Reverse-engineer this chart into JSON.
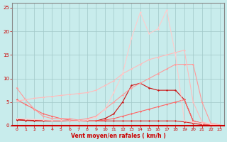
{
  "background_color": "#c8ecec",
  "grid_color": "#a0c8c8",
  "xlim": [
    -0.5,
    23.5
  ],
  "ylim": [
    0,
    26
  ],
  "yticks": [
    0,
    5,
    10,
    15,
    20,
    25
  ],
  "xticks": [
    0,
    1,
    2,
    3,
    4,
    5,
    6,
    7,
    8,
    9,
    10,
    11,
    12,
    13,
    14,
    15,
    16,
    17,
    18,
    19,
    20,
    21,
    22,
    23
  ],
  "xlabel": "Vent moyen/en rafales ( km/h )",
  "xlabel_color": "#cc0000",
  "tick_color": "#cc0000",
  "series": [
    {
      "x": [
        0,
        1,
        2,
        3,
        4,
        5,
        6,
        7,
        8,
        9,
        10,
        11,
        12,
        13,
        14,
        15,
        16,
        17,
        18,
        19,
        20,
        21,
        22,
        23
      ],
      "y": [
        1.3,
        1.2,
        1.1,
        1.1,
        1.0,
        1.0,
        1.0,
        1.0,
        1.0,
        1.0,
        1.0,
        1.0,
        1.0,
        1.0,
        1.0,
        1.0,
        1.0,
        1.0,
        1.0,
        0.8,
        0.5,
        0.2,
        0.1,
        0.1
      ],
      "color": "#dd2222",
      "marker": "D",
      "markersize": 1.5,
      "linewidth": 0.8
    },
    {
      "x": [
        0,
        1,
        2,
        3,
        4,
        5,
        6,
        7,
        8,
        9,
        10,
        11,
        12,
        13,
        14,
        15,
        16,
        17,
        18,
        19,
        20,
        21,
        22,
        23
      ],
      "y": [
        1.2,
        1.1,
        1.0,
        1.0,
        1.0,
        1.0,
        1.0,
        1.0,
        1.0,
        1.0,
        1.5,
        2.5,
        5.0,
        8.5,
        9.0,
        8.0,
        7.5,
        7.5,
        7.5,
        5.5,
        1.0,
        0.5,
        0.2,
        0.1
      ],
      "color": "#cc1111",
      "marker": "D",
      "markersize": 1.5,
      "linewidth": 0.8
    },
    {
      "x": [
        0,
        1,
        2,
        3,
        4,
        5,
        6,
        7,
        8,
        9,
        10,
        11,
        12,
        13,
        14,
        15,
        16,
        17,
        18,
        19,
        20,
        21,
        22,
        23
      ],
      "y": [
        5.5,
        4.5,
        3.5,
        2.5,
        2.0,
        1.5,
        1.2,
        1.0,
        1.0,
        1.0,
        1.2,
        1.5,
        2.0,
        2.5,
        3.0,
        3.5,
        4.0,
        4.5,
        5.0,
        5.5,
        1.0,
        0.5,
        0.2,
        0.1
      ],
      "color": "#ff6666",
      "marker": "D",
      "markersize": 1.5,
      "linewidth": 0.8
    },
    {
      "x": [
        0,
        1,
        2,
        3,
        4,
        5,
        6,
        7,
        8,
        9,
        10,
        11,
        12,
        13,
        14,
        15,
        16,
        17,
        18,
        19,
        20,
        21,
        22,
        23
      ],
      "y": [
        8.0,
        5.5,
        3.5,
        2.0,
        1.5,
        1.5,
        1.5,
        1.2,
        1.5,
        2.0,
        3.5,
        5.0,
        6.5,
        8.0,
        9.0,
        10.0,
        11.0,
        12.0,
        13.0,
        13.0,
        13.0,
        5.0,
        0.5,
        0.2
      ],
      "color": "#ff9999",
      "marker": "D",
      "markersize": 1.5,
      "linewidth": 0.8
    },
    {
      "x": [
        0,
        1,
        2,
        3,
        4,
        5,
        6,
        7,
        8,
        9,
        10,
        11,
        12,
        13,
        14,
        15,
        16,
        17,
        18,
        19,
        20,
        21,
        22,
        23
      ],
      "y": [
        5.2,
        5.5,
        5.8,
        6.0,
        6.2,
        6.4,
        6.6,
        6.8,
        7.0,
        7.5,
        8.5,
        9.5,
        11.0,
        12.0,
        13.0,
        14.0,
        14.5,
        15.0,
        15.5,
        16.0,
        5.0,
        0.8,
        0.3,
        0.1
      ],
      "color": "#ffbbbb",
      "marker": "D",
      "markersize": 1.5,
      "linewidth": 0.8
    },
    {
      "x": [
        0,
        1,
        2,
        3,
        4,
        5,
        6,
        7,
        8,
        9,
        10,
        11,
        12,
        13,
        14,
        15,
        16,
        17,
        18,
        19,
        20,
        21,
        22,
        23
      ],
      "y": [
        1.5,
        1.4,
        1.3,
        1.2,
        1.1,
        1.1,
        1.0,
        1.0,
        1.2,
        1.8,
        3.5,
        7.0,
        11.0,
        18.5,
        24.0,
        19.5,
        20.5,
        24.5,
        15.0,
        1.0,
        0.8,
        0.5,
        0.3,
        0.1
      ],
      "color": "#ffcccc",
      "marker": "D",
      "markersize": 1.5,
      "linewidth": 0.8
    }
  ]
}
